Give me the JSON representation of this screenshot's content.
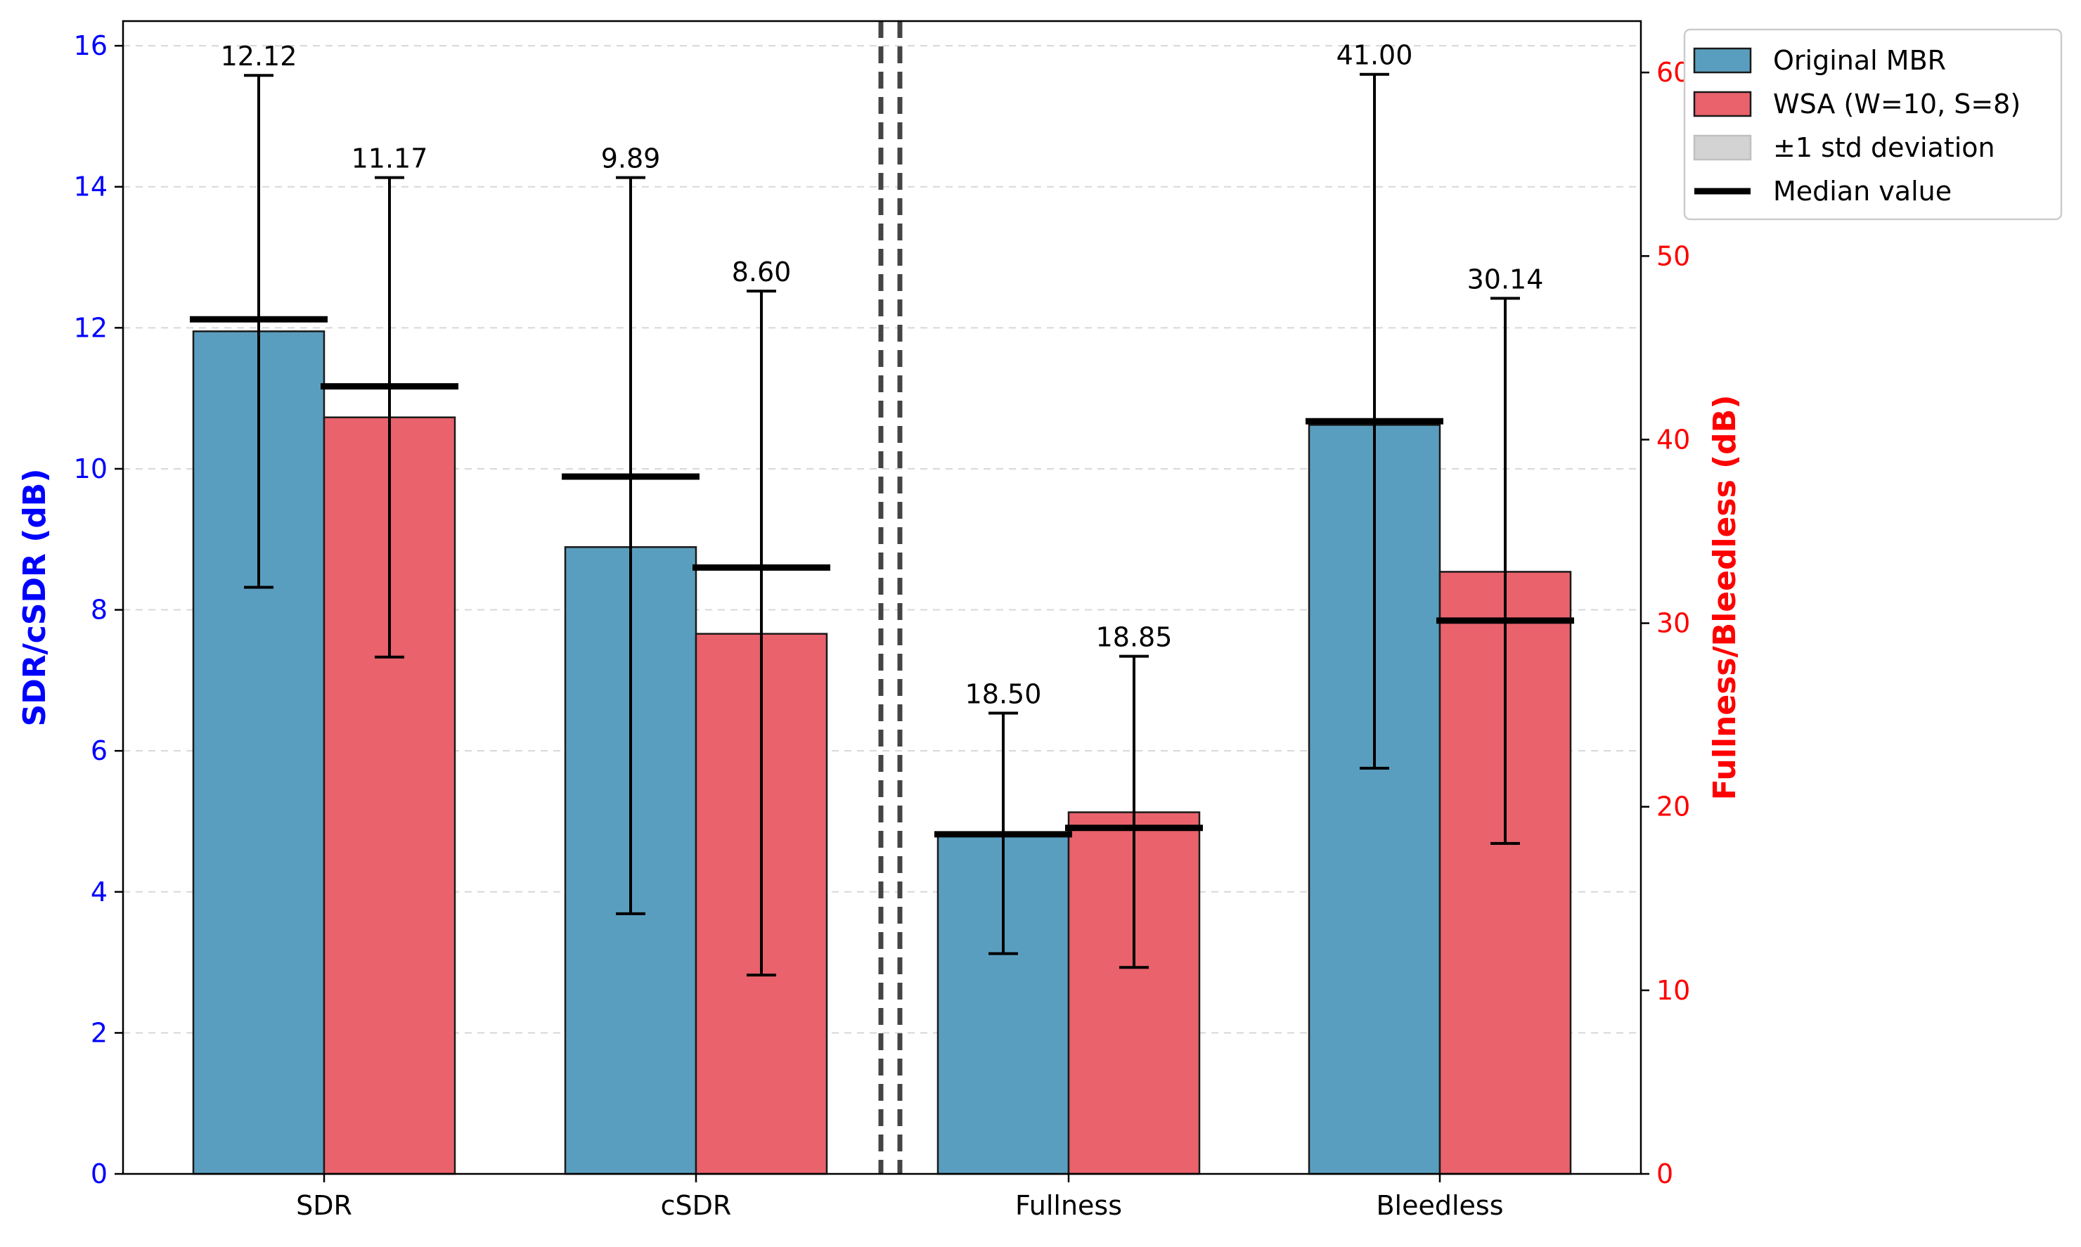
{
  "chart_data": {
    "type": "bar",
    "categories": [
      "SDR",
      "cSDR",
      "Fullness",
      "Bleedless"
    ],
    "axis_assignment": [
      "left",
      "left",
      "right",
      "right"
    ],
    "series": [
      {
        "name": "Original MBR",
        "color": "#5a9ebf",
        "values": [
          11.95,
          8.89,
          18.55,
          40.8
        ],
        "median": [
          12.12,
          9.89,
          18.5,
          41.0
        ],
        "median_labels": [
          "12.12",
          "9.89",
          "18.50",
          "41.00"
        ],
        "std_low": [
          8.32,
          3.69,
          12.0,
          22.1
        ],
        "std_high": [
          15.58,
          14.13,
          25.1,
          59.9
        ]
      },
      {
        "name": "WSA (W=10, S=8)",
        "color": "#e9626c",
        "values": [
          10.73,
          7.66,
          19.7,
          32.8
        ],
        "median": [
          11.17,
          8.6,
          18.85,
          30.14
        ],
        "median_labels": [
          "11.17",
          "8.60",
          "18.85",
          "30.14"
        ],
        "std_low": [
          7.33,
          2.82,
          11.25,
          18.0
        ],
        "std_high": [
          14.13,
          12.52,
          28.2,
          47.7
        ]
      }
    ],
    "left_axis": {
      "label": "SDR/cSDR (dB)",
      "ylim": [
        0,
        16.35
      ],
      "ticks": [
        0,
        2,
        4,
        6,
        8,
        10,
        12,
        14,
        16
      ],
      "color": "#0000ff"
    },
    "right_axis": {
      "label": "Fullness/Bleedless (dB)",
      "ylim": [
        0,
        62.8
      ],
      "ticks": [
        0,
        10,
        20,
        30,
        40,
        50,
        60
      ],
      "color": "#ff0000"
    },
    "legend": {
      "placement": "upper-right-outside",
      "entries": [
        {
          "label": "Original MBR",
          "kind": "patch",
          "color": "#5a9ebf"
        },
        {
          "label": "WSA (W=10, S=8)",
          "kind": "patch",
          "color": "#e9626c"
        },
        {
          "label": "±1 std deviation",
          "kind": "patch",
          "color": "#d3d3d3"
        },
        {
          "label": "Median value",
          "kind": "line",
          "color": "#000000"
        }
      ]
    },
    "grid": "y-dashed",
    "separator": "double-dashed-vertical-between-cSDR-and-Fullness"
  }
}
